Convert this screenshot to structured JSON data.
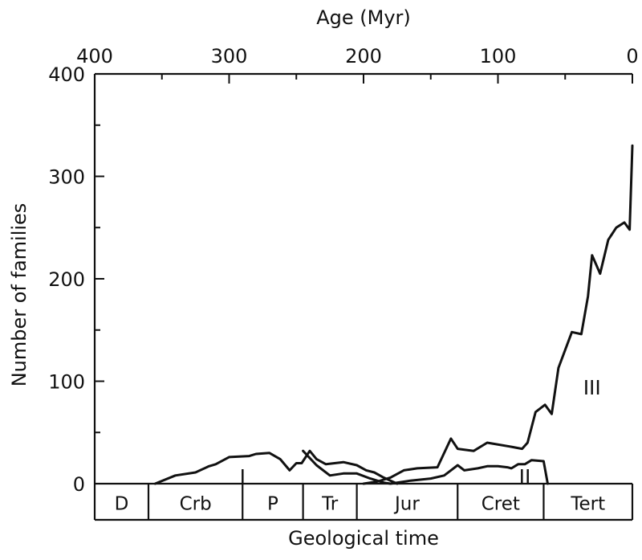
{
  "chart_data": {
    "type": "line",
    "title": "",
    "top_axis_label": "Age (Myr)",
    "ylabel": "Number of families",
    "xlabel": "Geological time",
    "xlim": [
      400,
      0
    ],
    "ylim": [
      0,
      400
    ],
    "top_ticks": [
      {
        "value": 400,
        "label": "400"
      },
      {
        "value": 300,
        "label": "300"
      },
      {
        "value": 200,
        "label": "200"
      },
      {
        "value": 100,
        "label": "100"
      },
      {
        "value": 0,
        "label": "0"
      }
    ],
    "y_ticks": [
      {
        "value": 0,
        "label": "0"
      },
      {
        "value": 100,
        "label": "100"
      },
      {
        "value": 200,
        "label": "200"
      },
      {
        "value": 300,
        "label": "300"
      },
      {
        "value": 400,
        "label": "400"
      }
    ],
    "periods": [
      {
        "label": "D",
        "start": 400,
        "end": 360
      },
      {
        "label": "Crb",
        "start": 360,
        "end": 290
      },
      {
        "label": "P",
        "start": 290,
        "end": 245
      },
      {
        "label": "Tr",
        "start": 245,
        "end": 205
      },
      {
        "label": "Jur",
        "start": 205,
        "end": 130
      },
      {
        "label": "Cret",
        "start": 130,
        "end": 66
      },
      {
        "label": "Tert",
        "start": 66,
        "end": 0
      }
    ],
    "series": [
      {
        "name": "I",
        "label_pos": {
          "age": 290,
          "value": 8
        },
        "points": [
          [
            355,
            0
          ],
          [
            340,
            8
          ],
          [
            325,
            11
          ],
          [
            315,
            17
          ],
          [
            310,
            19
          ],
          [
            300,
            26
          ],
          [
            285,
            27
          ],
          [
            280,
            29
          ],
          [
            270,
            30
          ],
          [
            262,
            24
          ],
          [
            255,
            13
          ],
          [
            250,
            20
          ],
          [
            246,
            20
          ],
          [
            240,
            32
          ],
          [
            235,
            24
          ],
          [
            228,
            19
          ],
          [
            215,
            21
          ],
          [
            205,
            18
          ],
          [
            198,
            13
          ],
          [
            192,
            11
          ],
          [
            185,
            6
          ],
          [
            180,
            3
          ],
          [
            175,
            0
          ]
        ]
      },
      {
        "name": "II",
        "label_pos": {
          "age": 80,
          "value": 8
        },
        "points": [
          [
            245,
            32
          ],
          [
            235,
            18
          ],
          [
            225,
            8
          ],
          [
            215,
            10
          ],
          [
            205,
            10
          ],
          [
            195,
            5
          ],
          [
            185,
            1
          ],
          [
            180,
            0
          ],
          [
            165,
            3
          ],
          [
            150,
            5
          ],
          [
            140,
            8
          ],
          [
            135,
            13
          ],
          [
            130,
            18
          ],
          [
            125,
            13
          ],
          [
            115,
            15
          ],
          [
            108,
            17
          ],
          [
            100,
            17
          ],
          [
            93,
            16
          ],
          [
            90,
            15
          ],
          [
            85,
            19
          ],
          [
            80,
            19
          ],
          [
            75,
            23
          ],
          [
            66,
            22
          ],
          [
            63,
            0
          ]
        ]
      },
      {
        "name": "III",
        "label_pos": {
          "age": 30,
          "value": 95
        },
        "points": [
          [
            200,
            0
          ],
          [
            190,
            2
          ],
          [
            180,
            6
          ],
          [
            170,
            13
          ],
          [
            160,
            15
          ],
          [
            145,
            16
          ],
          [
            135,
            44
          ],
          [
            130,
            34
          ],
          [
            118,
            32
          ],
          [
            108,
            40
          ],
          [
            90,
            36
          ],
          [
            82,
            34
          ],
          [
            78,
            40
          ],
          [
            72,
            70
          ],
          [
            65,
            77
          ],
          [
            60,
            68
          ],
          [
            55,
            113
          ],
          [
            45,
            148
          ],
          [
            38,
            146
          ],
          [
            33,
            183
          ],
          [
            30,
            223
          ],
          [
            24,
            205
          ],
          [
            18,
            238
          ],
          [
            12,
            250
          ],
          [
            6,
            255
          ],
          [
            2,
            248
          ],
          [
            0,
            330
          ]
        ]
      }
    ]
  }
}
